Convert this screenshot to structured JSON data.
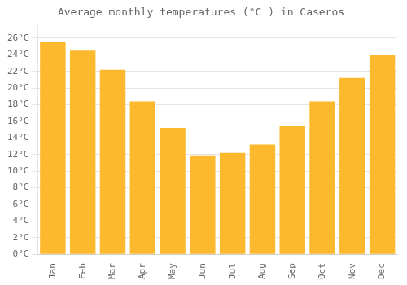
{
  "chart_data": {
    "type": "bar",
    "title": "Average monthly temperatures (°C ) in Caseros",
    "categories": [
      "Jan",
      "Feb",
      "Mar",
      "Apr",
      "May",
      "Jun",
      "Jul",
      "Aug",
      "Sep",
      "Oct",
      "Nov",
      "Dec"
    ],
    "values": [
      25.5,
      24.5,
      22.2,
      18.4,
      15.2,
      11.9,
      12.2,
      13.2,
      15.4,
      18.4,
      21.2,
      24.0
    ],
    "color": "#FDB92E",
    "ylim": [
      0,
      27.5
    ],
    "yticks": [
      {
        "value": 0,
        "label": "0°C"
      },
      {
        "value": 2,
        "label": "2°C"
      },
      {
        "value": 4,
        "label": "4°C"
      },
      {
        "value": 6,
        "label": "6°C"
      },
      {
        "value": 8,
        "label": "8°C"
      },
      {
        "value": 10,
        "label": "10°C"
      },
      {
        "value": 12,
        "label": "12°C"
      },
      {
        "value": 14,
        "label": "14°C"
      },
      {
        "value": 16,
        "label": "16°C"
      },
      {
        "value": 18,
        "label": "18°C"
      },
      {
        "value": 20,
        "label": "20°C"
      },
      {
        "value": 22,
        "label": "22°C"
      },
      {
        "value": 24,
        "label": "24°C"
      },
      {
        "value": 26,
        "label": "26°C"
      }
    ],
    "grid": true
  }
}
